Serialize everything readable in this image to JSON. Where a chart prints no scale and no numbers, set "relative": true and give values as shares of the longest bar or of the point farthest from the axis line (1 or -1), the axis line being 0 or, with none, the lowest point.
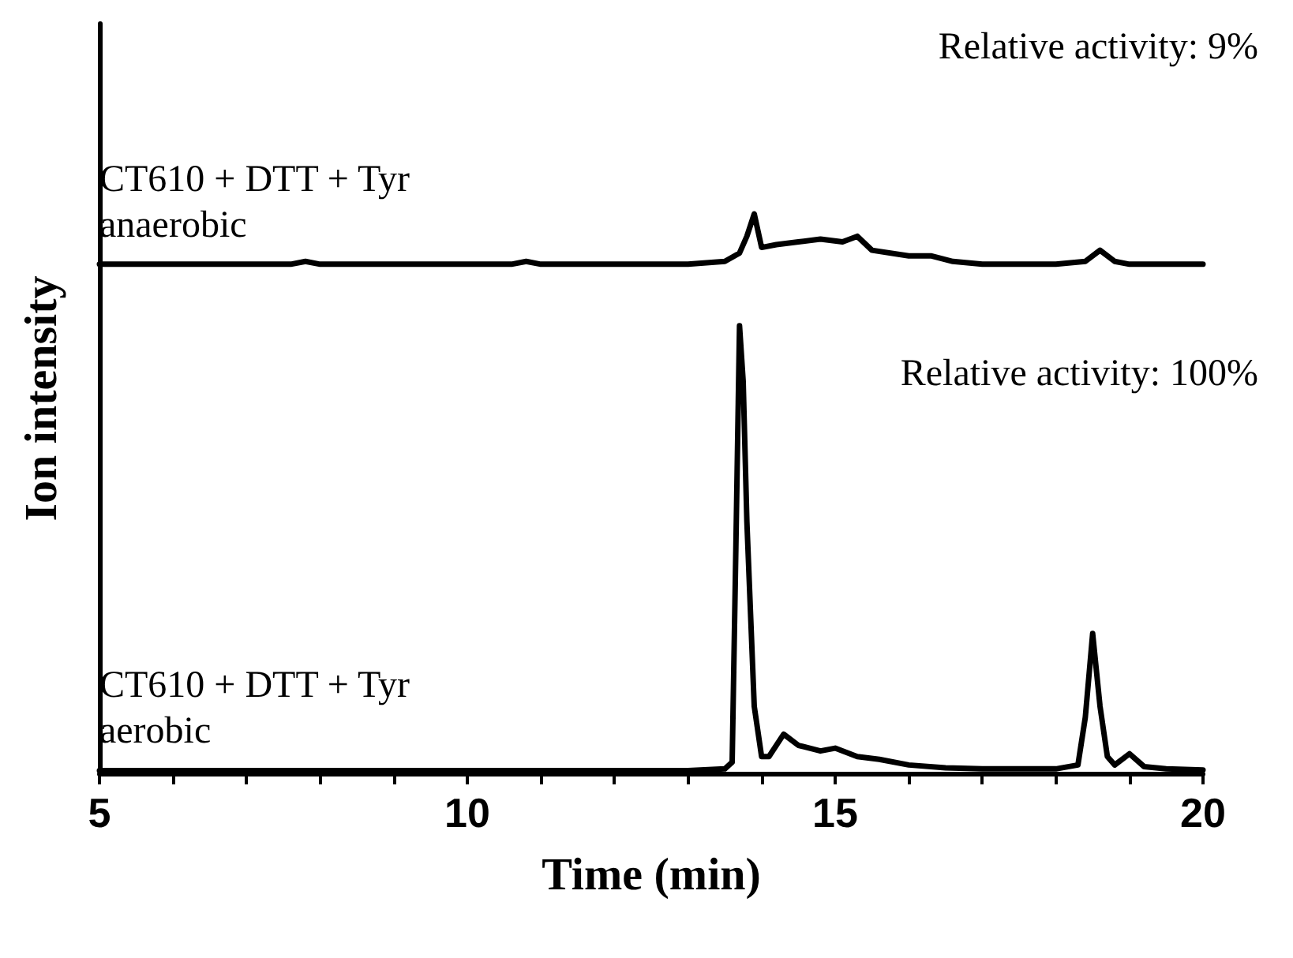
{
  "chart_data": {
    "type": "line",
    "relative": true,
    "xlabel": "Time (min)",
    "ylabel": "Ion intensity",
    "xlim": [
      5,
      20
    ],
    "xticks": [
      5,
      {
        "value": 6,
        "label": null
      },
      {
        "value": 7,
        "label": null
      },
      {
        "value": 8,
        "label": null
      },
      {
        "value": 9,
        "label": null
      },
      10,
      {
        "value": 11,
        "label": null
      },
      {
        "value": 12,
        "label": null
      },
      {
        "value": 13,
        "label": null
      },
      {
        "value": 14,
        "label": null
      },
      15,
      {
        "value": 16,
        "label": null
      },
      {
        "value": 17,
        "label": null
      },
      {
        "value": 18,
        "label": null
      },
      {
        "value": 19,
        "label": null
      },
      20
    ],
    "legend": false,
    "grid": false,
    "marker": "none",
    "line_style": "solid",
    "annotations": [
      "Relative activity: 9%",
      "Relative activity: 100%"
    ],
    "series": [
      {
        "name": "CT610 + DTT + Tyr\nanaerobic",
        "color": "#000000",
        "x": [
          5,
          6,
          7,
          7.6,
          7.8,
          8,
          9,
          10,
          10.6,
          10.8,
          11,
          12,
          13,
          13.5,
          13.7,
          13.8,
          13.9,
          14.0,
          14.2,
          14.5,
          14.8,
          15.1,
          15.3,
          15.5,
          16,
          16.3,
          16.6,
          17,
          18,
          18.4,
          18.6,
          18.8,
          19,
          20
        ],
        "values": [
          0.91,
          0.91,
          0.91,
          0.91,
          0.915,
          0.91,
          0.91,
          0.91,
          0.91,
          0.915,
          0.91,
          0.91,
          0.91,
          0.915,
          0.93,
          0.96,
          1.0,
          0.94,
          0.945,
          0.95,
          0.955,
          0.95,
          0.96,
          0.935,
          0.925,
          0.925,
          0.915,
          0.91,
          0.91,
          0.915,
          0.935,
          0.915,
          0.91,
          0.91
        ]
      },
      {
        "name": "CT610 + DTT + Tyr\naerobic",
        "color": "#000000",
        "x": [
          5,
          6,
          7,
          8,
          9,
          10,
          11,
          12,
          13,
          13.5,
          13.6,
          13.65,
          13.7,
          13.75,
          13.8,
          13.9,
          14.0,
          14.1,
          14.3,
          14.5,
          14.8,
          15,
          15.3,
          15.6,
          16,
          16.5,
          17,
          18,
          18.3,
          18.4,
          18.5,
          18.6,
          18.7,
          18.8,
          19,
          19.2,
          19.5,
          20
        ],
        "values": [
          0.005,
          0.005,
          0.005,
          0.005,
          0.005,
          0.005,
          0.005,
          0.005,
          0.005,
          0.008,
          0.02,
          0.4,
          0.8,
          0.7,
          0.45,
          0.12,
          0.03,
          0.03,
          0.07,
          0.05,
          0.04,
          0.045,
          0.03,
          0.025,
          0.015,
          0.01,
          0.008,
          0.008,
          0.015,
          0.1,
          0.25,
          0.12,
          0.03,
          0.015,
          0.035,
          0.012,
          0.008,
          0.006
        ]
      }
    ]
  }
}
